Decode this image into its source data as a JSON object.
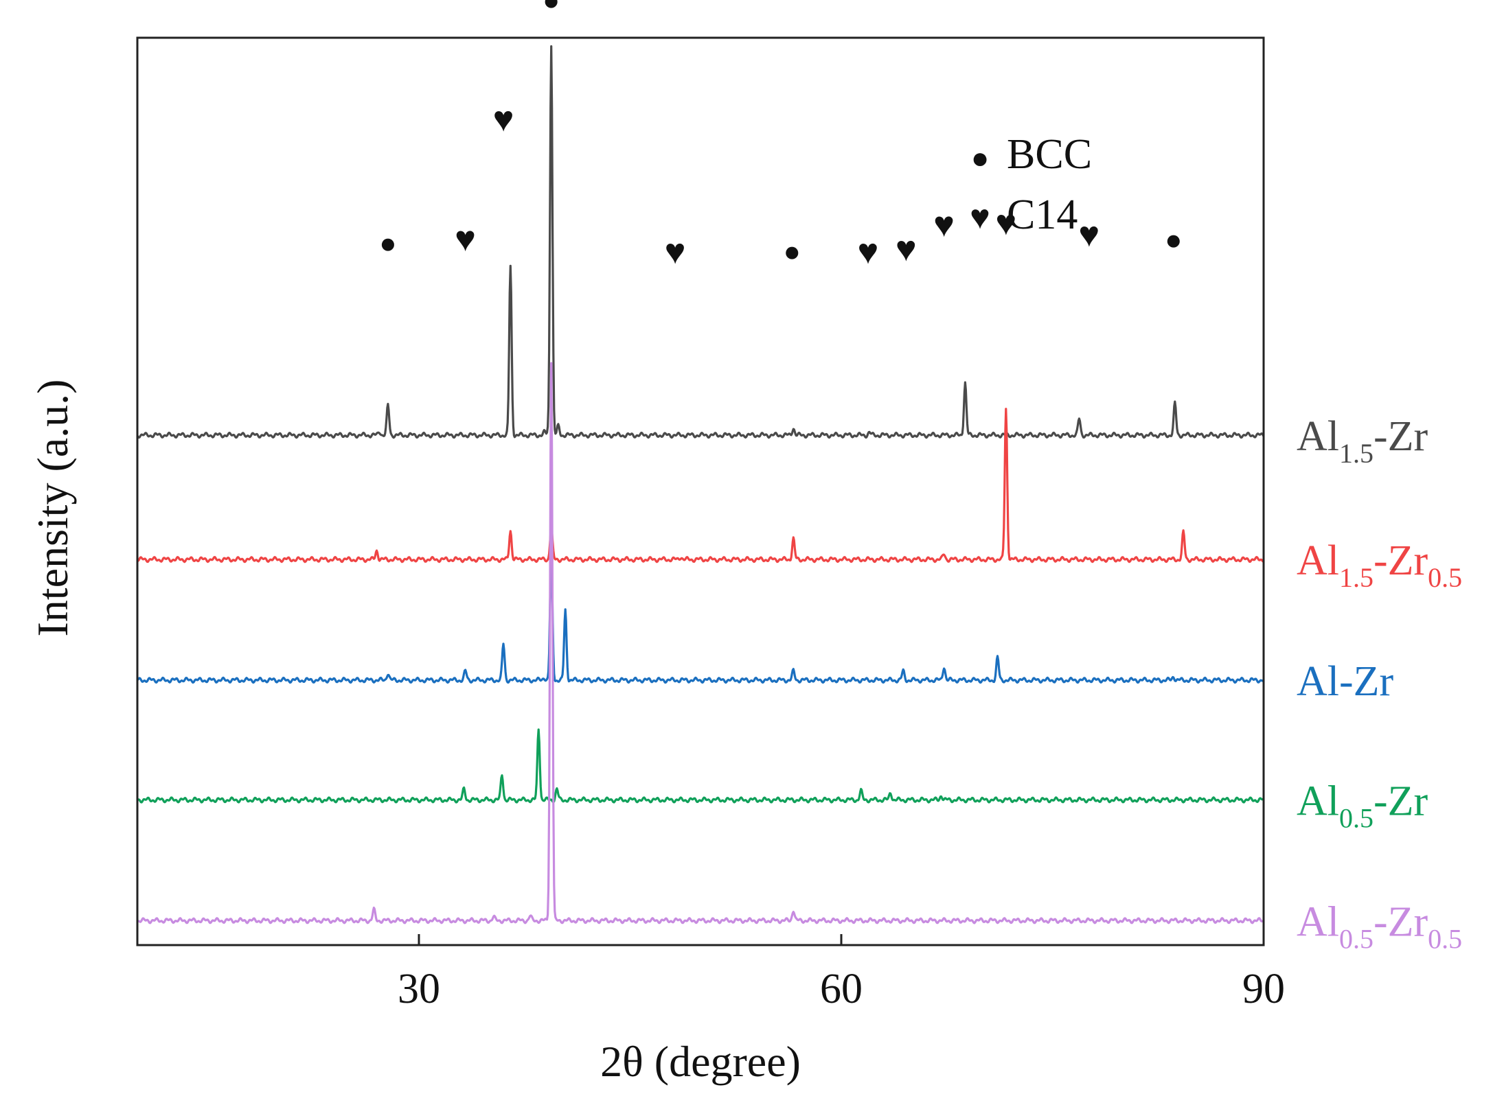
{
  "chart_data": {
    "type": "line",
    "title": "",
    "xlabel": "2θ (degree)",
    "ylabel": "Intensity (a.u.)",
    "xlim": [
      10,
      90
    ],
    "ylim": [
      0,
      1
    ],
    "x_ticks": [
      30,
      60,
      90
    ],
    "grid": false,
    "legend_placement": "top-right",
    "legend": [
      {
        "symbol": "●",
        "label": "BCC"
      },
      {
        "symbol": "♥",
        "label": "C14"
      }
    ],
    "series": [
      {
        "id": "al15zr",
        "label_parts": [
          [
            "Al",
            ""
          ],
          [
            "1.5",
            "sub"
          ],
          [
            "-Zr",
            ""
          ]
        ],
        "color": "#4a4a4a",
        "baseline": 0.562,
        "peaks": [
          {
            "x": 27.2,
            "h": 0.004
          },
          {
            "x": 27.8,
            "h": 0.033
          },
          {
            "x": 36.5,
            "h": 0.186
          },
          {
            "x": 38.9,
            "h": 0.003
          },
          {
            "x": 39.2,
            "h": 0.004
          },
          {
            "x": 39.4,
            "h": 0.431
          },
          {
            "x": 39.9,
            "h": 0.01
          },
          {
            "x": 56.6,
            "h": 0.008
          },
          {
            "x": 62.0,
            "h": 0.003
          },
          {
            "x": 68.8,
            "h": 0.058
          },
          {
            "x": 76.9,
            "h": 0.018
          },
          {
            "x": 83.7,
            "h": 0.035
          }
        ],
        "markers": [
          {
            "x": 27.8,
            "symbol": "●",
            "y": 0.77
          },
          {
            "x": 33.3,
            "symbol": "♥",
            "y": 0.774
          },
          {
            "x": 36.0,
            "symbol": "♥",
            "y": 0.906
          },
          {
            "x": 39.4,
            "symbol": "●",
            "y": 1.038
          },
          {
            "x": 48.2,
            "symbol": "♥",
            "y": 0.76
          },
          {
            "x": 56.5,
            "symbol": "●",
            "y": 0.761
          },
          {
            "x": 61.9,
            "symbol": "♥",
            "y": 0.76
          },
          {
            "x": 64.6,
            "symbol": "♥",
            "y": 0.763
          },
          {
            "x": 67.3,
            "symbol": "♥",
            "y": 0.79
          },
          {
            "x": 71.7,
            "symbol": "♥",
            "y": 0.792
          },
          {
            "x": 77.6,
            "symbol": "♥",
            "y": 0.779
          },
          {
            "x": 83.6,
            "symbol": "●",
            "y": 0.774
          }
        ]
      },
      {
        "id": "al15zr05",
        "label_parts": [
          [
            "Al",
            ""
          ],
          [
            "1.5",
            "sub"
          ],
          [
            "-Zr",
            ""
          ],
          [
            "0.5",
            "sub"
          ]
        ],
        "color": "#ef4444",
        "baseline": 0.425,
        "peaks": [
          {
            "x": 27.0,
            "h": 0.01
          },
          {
            "x": 36.5,
            "h": 0.032
          },
          {
            "x": 39.4,
            "h": 0.035
          },
          {
            "x": 48.6,
            "h": 0.003
          },
          {
            "x": 56.6,
            "h": 0.023
          },
          {
            "x": 67.3,
            "h": 0.006
          },
          {
            "x": 71.7,
            "h": 0.166
          },
          {
            "x": 84.3,
            "h": 0.03
          }
        ],
        "markers": []
      },
      {
        "id": "alzr",
        "label_parts": [
          [
            "Al-Zr",
            ""
          ]
        ],
        "color": "#1a6fbf",
        "baseline": 0.292,
        "peaks": [
          {
            "x": 27.8,
            "h": 0.008
          },
          {
            "x": 33.3,
            "h": 0.01
          },
          {
            "x": 36.0,
            "h": 0.04
          },
          {
            "x": 38.9,
            "h": 0.003
          },
          {
            "x": 39.4,
            "h": 0.14
          },
          {
            "x": 40.4,
            "h": 0.077
          },
          {
            "x": 56.6,
            "h": 0.01
          },
          {
            "x": 64.4,
            "h": 0.01
          },
          {
            "x": 67.3,
            "h": 0.015
          },
          {
            "x": 71.1,
            "h": 0.025
          },
          {
            "x": 83.6,
            "h": 0.004
          }
        ],
        "markers": []
      },
      {
        "id": "al05zr",
        "label_parts": [
          [
            "Al",
            ""
          ],
          [
            "0.5",
            "sub"
          ],
          [
            "-Zr",
            ""
          ]
        ],
        "color": "#10a05a",
        "baseline": 0.16,
        "peaks": [
          {
            "x": 33.2,
            "h": 0.012
          },
          {
            "x": 35.9,
            "h": 0.028
          },
          {
            "x": 38.5,
            "h": 0.078
          },
          {
            "x": 39.8,
            "h": 0.012
          },
          {
            "x": 61.4,
            "h": 0.01
          },
          {
            "x": 63.5,
            "h": 0.008
          },
          {
            "x": 67.1,
            "h": 0.005
          }
        ],
        "markers": []
      },
      {
        "id": "al05zr05",
        "label_parts": [
          [
            "Al",
            ""
          ],
          [
            "0.5",
            "sub"
          ],
          [
            "-Zr",
            ""
          ],
          [
            "0.5",
            "sub"
          ]
        ],
        "color": "#c78be0",
        "baseline": 0.027,
        "peaks": [
          {
            "x": 26.8,
            "h": 0.012
          },
          {
            "x": 35.3,
            "h": 0.004
          },
          {
            "x": 37.9,
            "h": 0.005
          },
          {
            "x": 39.4,
            "h": 0.615
          },
          {
            "x": 56.6,
            "h": 0.012
          }
        ],
        "markers": []
      }
    ]
  }
}
